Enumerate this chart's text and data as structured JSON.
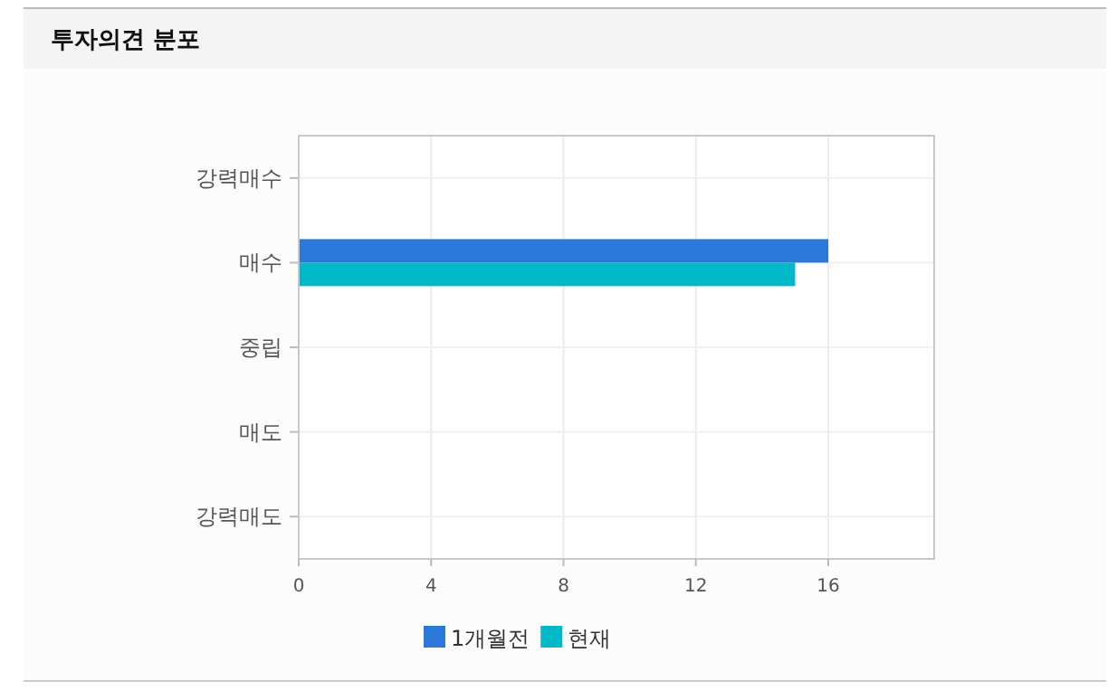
{
  "chart_data": {
    "type": "bar",
    "orientation": "horizontal",
    "title": "투자의견 분포",
    "categories": [
      "강력매수",
      "매수",
      "중립",
      "매도",
      "강력매도"
    ],
    "series": [
      {
        "name": "1개월전",
        "color": "#2a78d8",
        "values": [
          0,
          16,
          0,
          0,
          0
        ]
      },
      {
        "name": "현재",
        "color": "#00b8c8",
        "values": [
          0,
          15,
          0,
          0,
          0
        ]
      }
    ],
    "xlim": [
      0,
      19.2
    ],
    "xticks": [
      0,
      4,
      8,
      12,
      16
    ],
    "grid": true,
    "legend": "bottom"
  }
}
